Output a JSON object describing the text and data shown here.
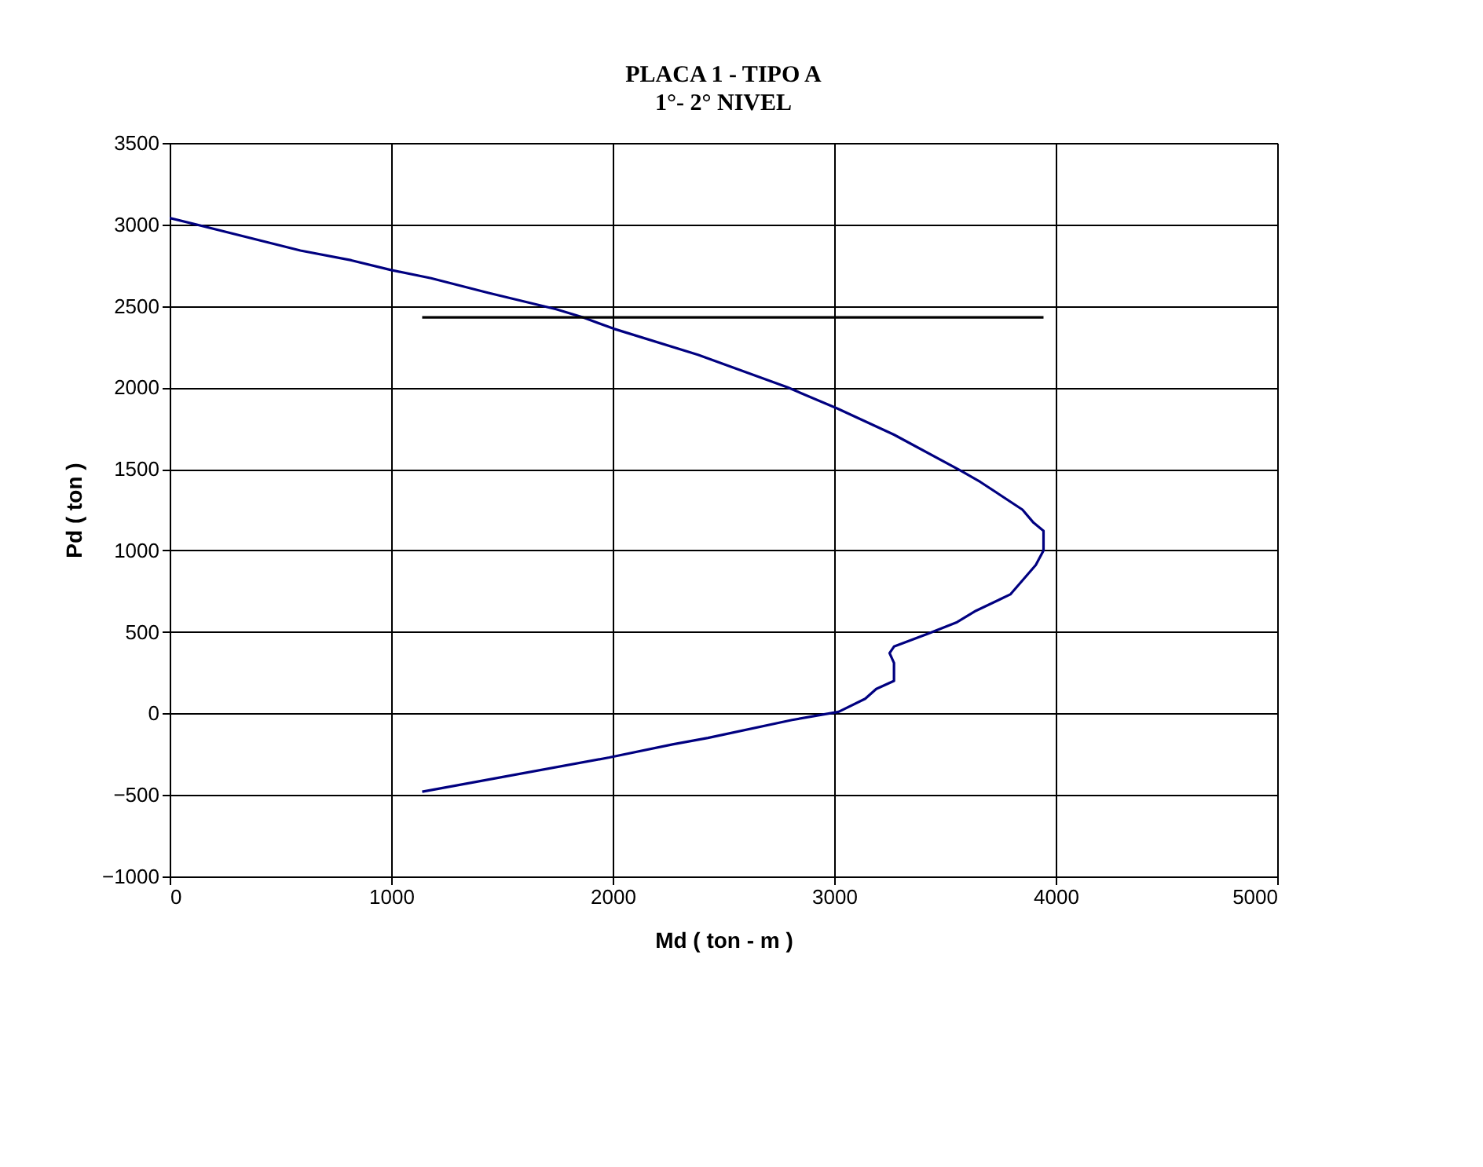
{
  "chart_data": {
    "type": "line",
    "title": "PLACA 1 -  TIPO A",
    "subtitle": "1°- 2° NIVEL",
    "xlabel": "Md ( ton - m )",
    "ylabel": "Pd ( ton )",
    "xlim": [
      0,
      5000
    ],
    "xticks": [
      0,
      1000,
      2000,
      3000,
      4000,
      5000
    ],
    "ylim": [
      -1000,
      3500
    ],
    "yticks": [
      -1000,
      -500,
      0,
      500,
      1000,
      1500,
      2000,
      2500,
      3000,
      3500
    ],
    "grid": true,
    "marker": "none",
    "line_style": "solid",
    "series": [
      {
        "color": "#000080",
        "x": [
          0,
          590,
          820,
          1000,
          1180,
          1440,
          1745,
          1865,
          2005,
          2385,
          2790,
          3015,
          3270,
          3570,
          3660,
          3850,
          3900,
          3945,
          3945,
          3910,
          3795,
          3640,
          3555,
          3425,
          3270,
          3250,
          3270,
          3270,
          3190,
          3140,
          3020,
          2810,
          2430,
          2270,
          1985,
          1140
        ],
        "values": [
          3040,
          2840,
          2780,
          2720,
          2670,
          2580,
          2480,
          2430,
          2360,
          2200,
          2000,
          1870,
          1710,
          1490,
          1420,
          1250,
          1170,
          1120,
          1000,
          910,
          730,
          630,
          560,
          490,
          410,
          370,
          310,
          200,
          150,
          90,
          10,
          -40,
          -150,
          -190,
          -270,
          -480
        ]
      },
      {
        "color": "#000000",
        "x": [
          1140,
          3945
        ],
        "values": [
          2430,
          2430
        ]
      }
    ]
  }
}
